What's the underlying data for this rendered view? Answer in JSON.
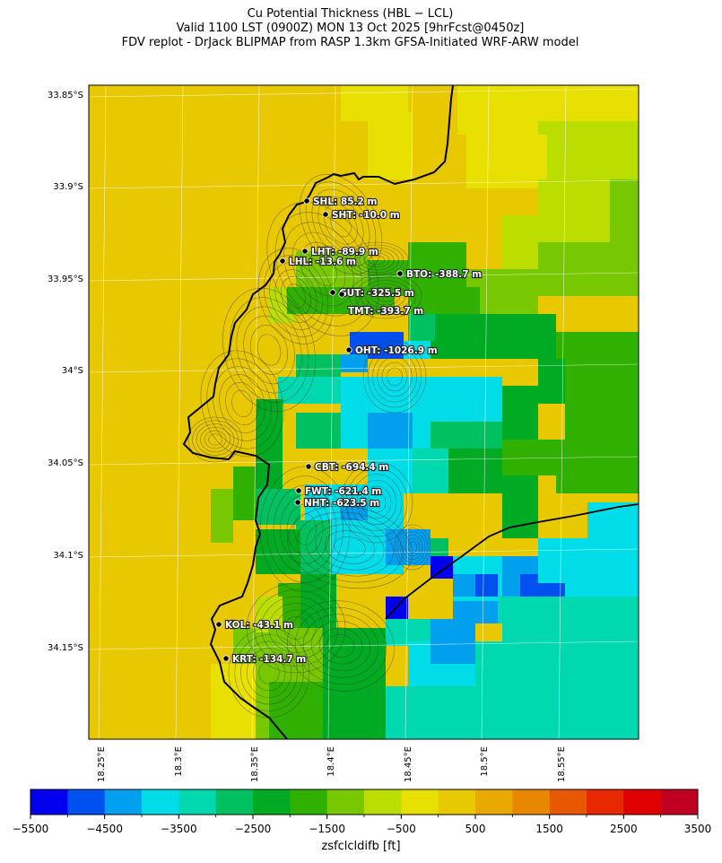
{
  "title": {
    "line1": "Cu Potential Thickness (HBL − LCL)",
    "line2": "Valid 1100 LST (0900Z) MON 13 Oct 2025 [9hrFcst@0450z]",
    "line3": "FDV replot - DrJack BLIPMAP from RASP 1.3km GFSA-Initiated WRF-ARW model"
  },
  "map": {
    "lat_ticks": [
      "33.85°S",
      "33.9°S",
      "33.95°S",
      "34°S",
      "34.05°S",
      "34.1°S",
      "34.15°S"
    ],
    "lon_ticks": [
      "18.25°E",
      "18.3°E",
      "18.35°E",
      "18.4°E",
      "18.45°E",
      "18.5°E",
      "18.55°E"
    ],
    "land_color": "#e8c800",
    "stations": [
      {
        "code": "SHL",
        "label": "SHL: 85.2 m",
        "value_m": 85.2
      },
      {
        "code": "SHT",
        "label": "SHT: -10.0 m",
        "value_m": -10.0
      },
      {
        "code": "LHT",
        "label": "LHT: -89.9 m",
        "value_m": -89.9
      },
      {
        "code": "LHL",
        "label": "LHL: -13.6 m",
        "value_m": -13.6
      },
      {
        "code": "BTO",
        "label": "BTO: -388.7 m",
        "value_m": -388.7
      },
      {
        "code": "GUT",
        "label": "GUT: -325.5 m",
        "value_m": -325.5
      },
      {
        "code": "TMT",
        "label": "TMT: -393.7 m",
        "value_m": -393.7
      },
      {
        "code": "OHT",
        "label": "OHT: -1026.9 m",
        "value_m": -1026.9
      },
      {
        "code": "CBT",
        "label": "CBT: -694.4 m",
        "value_m": -694.4
      },
      {
        "code": "FWT",
        "label": "FWT: -621.4 m",
        "value_m": -621.4
      },
      {
        "code": "NHT",
        "label": "NHT: -623.5 m",
        "value_m": -623.5
      },
      {
        "code": "KOL",
        "label": "KOL: -43.1 m",
        "value_m": -43.1
      },
      {
        "code": "KRT",
        "label": "KRT: -134.7 m",
        "value_m": -134.7
      }
    ]
  },
  "colorbar": {
    "label": "zsfclcldifb [ft]",
    "min": -5500,
    "max": 3500,
    "step": 500,
    "tick_labels": [
      "−5500",
      "−4500",
      "−3500",
      "−2500",
      "−1500",
      "−500",
      "500",
      "1500",
      "2500",
      "3500"
    ],
    "colors": [
      "#0000ee",
      "#0050f0",
      "#00a0ee",
      "#00dde8",
      "#00d8b0",
      "#00c060",
      "#00aa22",
      "#30b000",
      "#78c800",
      "#bbdd00",
      "#e8e000",
      "#e8c800",
      "#e8aa00",
      "#e88800",
      "#e85800",
      "#e82800",
      "#e00000",
      "#c00020"
    ]
  }
}
